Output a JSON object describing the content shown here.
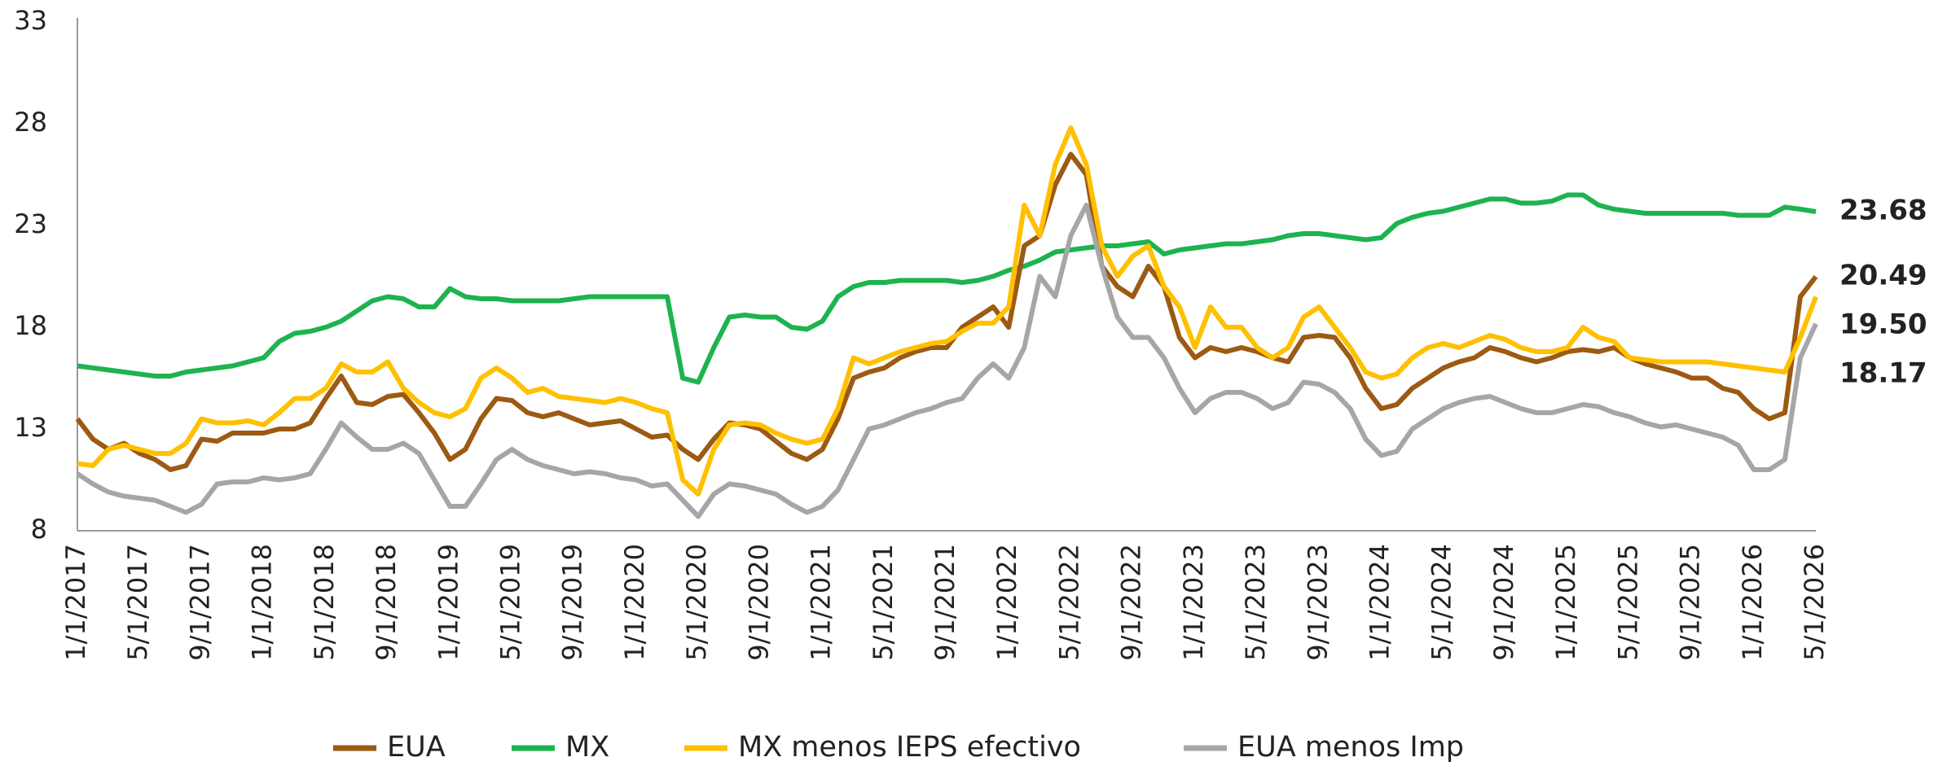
{
  "chart_data": {
    "type": "line",
    "categories": [
      "1/1/2017",
      null,
      null,
      null,
      "5/1/2017",
      null,
      null,
      null,
      "9/1/2017",
      null,
      null,
      null,
      "1/1/2018",
      null,
      null,
      null,
      "5/1/2018",
      null,
      null,
      null,
      "9/1/2018",
      null,
      null,
      null,
      "1/1/2019",
      null,
      null,
      null,
      "5/1/2019",
      null,
      null,
      null,
      "9/1/2019",
      null,
      null,
      null,
      "1/1/2020",
      null,
      null,
      null,
      "5/1/2020",
      null,
      null,
      null,
      "9/1/2020",
      null,
      null,
      null,
      "1/1/2021",
      null,
      null,
      null,
      "5/1/2021",
      null,
      null,
      null,
      "9/1/2021",
      null,
      null,
      null,
      "1/1/2022",
      null,
      null,
      null,
      "5/1/2022",
      null,
      null,
      null,
      "9/1/2022",
      null,
      null,
      null,
      "1/1/2023",
      null,
      null,
      null,
      "5/1/2023",
      null,
      null,
      null,
      "9/1/2023",
      null,
      null,
      null,
      "1/1/2024",
      null,
      null,
      null,
      "5/1/2024",
      null,
      null,
      null,
      "9/1/2024",
      null,
      null,
      null,
      "1/1/2025",
      null,
      null,
      null,
      "5/1/2025",
      null,
      null,
      null,
      "9/1/2025",
      null,
      null,
      null,
      "1/1/2026",
      null,
      null,
      null,
      "5/1/2026"
    ],
    "series": [
      {
        "name": "EUA",
        "color": "#9c5a12",
        "values": [
          13.5,
          12.5,
          12.0,
          12.3,
          11.8,
          11.5,
          11.0,
          11.2,
          12.5,
          12.4,
          12.8,
          12.8,
          12.8,
          13.0,
          13.0,
          13.3,
          14.5,
          15.6,
          14.3,
          14.2,
          14.6,
          14.7,
          13.8,
          12.8,
          11.5,
          12.0,
          13.5,
          14.5,
          14.4,
          13.8,
          13.6,
          13.8,
          13.5,
          13.2,
          13.3,
          13.4,
          13.0,
          12.6,
          12.7,
          12.0,
          11.5,
          12.5,
          13.3,
          13.2,
          13.0,
          12.4,
          11.8,
          11.5,
          12.0,
          13.5,
          15.5,
          15.8,
          16.0,
          16.5,
          16.8,
          17.0,
          17.0,
          18.0,
          18.5,
          19.0,
          18.0,
          22.0,
          22.5,
          25.0,
          26.5,
          25.5,
          21.0,
          20.0,
          19.5,
          21.0,
          20.0,
          17.5,
          16.5,
          17.0,
          16.8,
          17.0,
          16.8,
          16.5,
          16.3,
          17.5,
          17.6,
          17.5,
          16.5,
          15.0,
          14.0,
          14.2,
          15.0,
          15.5,
          16.0,
          16.3,
          16.5,
          17.0,
          16.8,
          16.5,
          16.3,
          16.5,
          16.8,
          16.9,
          16.8,
          17.0,
          16.5,
          16.2,
          16.0,
          15.8,
          15.5,
          15.5,
          15.0,
          14.8,
          14.0,
          13.5,
          13.8,
          19.5,
          20.49
        ],
        "value_labels": [
          null,
          null,
          null,
          null,
          null,
          null,
          null,
          null,
          null,
          null,
          null,
          null,
          null,
          null,
          null,
          null,
          null,
          null,
          null,
          null,
          null,
          null,
          null,
          null,
          null,
          null,
          null,
          null,
          null,
          null,
          null,
          null,
          null,
          null,
          null,
          null,
          null,
          null,
          null,
          null,
          null,
          null,
          null,
          null,
          null,
          null,
          null,
          null,
          null,
          null,
          null,
          null,
          null,
          null,
          null,
          null,
          null,
          null,
          null,
          null,
          null,
          null,
          null,
          null,
          null,
          null,
          null,
          null,
          null,
          null,
          null,
          null,
          null,
          null,
          null,
          null,
          null,
          null,
          null,
          null,
          null,
          null,
          null,
          null,
          null,
          null,
          null,
          null,
          null,
          null,
          null,
          null,
          null,
          null,
          null,
          null,
          null,
          null,
          null,
          null,
          null,
          null,
          null,
          null,
          null,
          null,
          null,
          null,
          null,
          null,
          null,
          null,
          "20.49"
        ]
      },
      {
        "name": "MX",
        "color": "#1db34f",
        "values": [
          16.1,
          16.0,
          15.9,
          15.8,
          15.7,
          15.6,
          15.6,
          15.8,
          15.9,
          16.0,
          16.1,
          16.3,
          16.5,
          17.3,
          17.7,
          17.8,
          18.0,
          18.3,
          18.8,
          19.3,
          19.5,
          19.4,
          19.0,
          19.0,
          19.9,
          19.5,
          19.4,
          19.4,
          19.3,
          19.3,
          19.3,
          19.3,
          19.4,
          19.5,
          19.5,
          19.5,
          19.5,
          19.5,
          19.5,
          15.5,
          15.3,
          17.0,
          18.5,
          18.6,
          18.5,
          18.5,
          18.0,
          17.9,
          18.3,
          19.5,
          20.0,
          20.2,
          20.2,
          20.3,
          20.3,
          20.3,
          20.3,
          20.2,
          20.3,
          20.5,
          20.8,
          21.0,
          21.3,
          21.7,
          21.8,
          21.9,
          22.0,
          22.0,
          22.1,
          22.2,
          21.6,
          21.8,
          21.9,
          22.0,
          22.1,
          22.1,
          22.2,
          22.3,
          22.5,
          22.6,
          22.6,
          22.5,
          22.4,
          22.3,
          22.4,
          23.1,
          23.4,
          23.6,
          23.7,
          23.9,
          24.1,
          24.3,
          24.3,
          24.1,
          24.1,
          24.2,
          24.5,
          24.5,
          24.0,
          23.8,
          23.7,
          23.6,
          23.6,
          23.6,
          23.6,
          23.6,
          23.6,
          23.5,
          23.5,
          23.5,
          23.9,
          23.8,
          23.68
        ],
        "value_labels": [
          null,
          null,
          null,
          null,
          null,
          null,
          null,
          null,
          null,
          null,
          null,
          null,
          null,
          null,
          null,
          null,
          null,
          null,
          null,
          null,
          null,
          null,
          null,
          null,
          null,
          null,
          null,
          null,
          null,
          null,
          null,
          null,
          null,
          null,
          null,
          null,
          null,
          null,
          null,
          null,
          null,
          null,
          null,
          null,
          null,
          null,
          null,
          null,
          null,
          null,
          null,
          null,
          null,
          null,
          null,
          null,
          null,
          null,
          null,
          null,
          null,
          null,
          null,
          null,
          null,
          null,
          null,
          null,
          null,
          null,
          null,
          null,
          null,
          null,
          null,
          null,
          null,
          null,
          null,
          null,
          null,
          null,
          null,
          null,
          null,
          null,
          null,
          null,
          null,
          null,
          null,
          null,
          null,
          null,
          null,
          null,
          null,
          null,
          null,
          null,
          null,
          null,
          null,
          null,
          null,
          null,
          null,
          null,
          null,
          null,
          null,
          null,
          "23.68"
        ]
      },
      {
        "name": "MX menos IEPS efectivo",
        "color": "#ffc000",
        "values": [
          11.3,
          11.2,
          12.0,
          12.2,
          12.0,
          11.8,
          11.8,
          12.3,
          13.5,
          13.3,
          13.3,
          13.4,
          13.2,
          13.8,
          14.5,
          14.5,
          15.0,
          16.2,
          15.8,
          15.8,
          16.3,
          15.0,
          14.3,
          13.8,
          13.6,
          14.0,
          15.5,
          16.0,
          15.5,
          14.8,
          15.0,
          14.6,
          14.5,
          14.4,
          14.3,
          14.5,
          14.3,
          14.0,
          13.8,
          10.5,
          9.8,
          12.0,
          13.2,
          13.3,
          13.2,
          12.8,
          12.5,
          12.3,
          12.5,
          14.0,
          16.5,
          16.2,
          16.5,
          16.8,
          17.0,
          17.2,
          17.3,
          17.8,
          18.2,
          18.2,
          19.0,
          24.0,
          22.5,
          26.0,
          27.8,
          26.0,
          22.0,
          20.5,
          21.5,
          22.0,
          20.0,
          19.0,
          17.0,
          19.0,
          18.0,
          18.0,
          17.0,
          16.5,
          17.0,
          18.5,
          19.0,
          18.0,
          17.0,
          15.8,
          15.5,
          15.7,
          16.5,
          17.0,
          17.2,
          17.0,
          17.3,
          17.6,
          17.4,
          17.0,
          16.8,
          16.8,
          17.0,
          18.0,
          17.5,
          17.3,
          16.5,
          16.4,
          16.3,
          16.3,
          16.3,
          16.3,
          16.2,
          16.1,
          16.0,
          15.9,
          15.8,
          17.5,
          19.5
        ],
        "value_labels": [
          null,
          null,
          null,
          null,
          null,
          null,
          null,
          null,
          null,
          null,
          null,
          null,
          null,
          null,
          null,
          null,
          null,
          null,
          null,
          null,
          null,
          null,
          null,
          null,
          null,
          null,
          null,
          null,
          null,
          null,
          null,
          null,
          null,
          null,
          null,
          null,
          null,
          null,
          null,
          null,
          null,
          null,
          null,
          null,
          null,
          null,
          null,
          null,
          null,
          null,
          null,
          null,
          null,
          null,
          null,
          null,
          null,
          null,
          null,
          null,
          null,
          null,
          null,
          null,
          null,
          null,
          null,
          null,
          null,
          null,
          null,
          null,
          null,
          null,
          null,
          null,
          null,
          null,
          null,
          null,
          null,
          null,
          null,
          null,
          null,
          null,
          null,
          null,
          null,
          null,
          null,
          null,
          null,
          null,
          null,
          null,
          null,
          null,
          null,
          null,
          null,
          null,
          null,
          null,
          null,
          null,
          null,
          null,
          null,
          null,
          null,
          null,
          "19.50"
        ]
      },
      {
        "name": "EUA menos Imp",
        "color": "#a6a6a6",
        "values": [
          10.8,
          10.3,
          9.9,
          9.7,
          9.6,
          9.5,
          9.2,
          8.9,
          9.3,
          10.3,
          10.4,
          10.4,
          10.6,
          10.5,
          10.6,
          10.8,
          12.0,
          13.3,
          12.6,
          12.0,
          12.0,
          12.3,
          11.8,
          10.5,
          9.2,
          9.2,
          10.3,
          11.5,
          12.0,
          11.5,
          11.2,
          11.0,
          10.8,
          10.9,
          10.8,
          10.6,
          10.5,
          10.2,
          10.3,
          9.5,
          8.7,
          9.8,
          10.3,
          10.2,
          10.0,
          9.8,
          9.3,
          8.9,
          9.2,
          10.0,
          11.5,
          13.0,
          13.2,
          13.5,
          13.8,
          14.0,
          14.3,
          14.5,
          15.5,
          16.2,
          15.5,
          17.0,
          20.5,
          19.5,
          22.5,
          24.0,
          21.0,
          18.5,
          17.5,
          17.5,
          16.5,
          15.0,
          13.8,
          14.5,
          14.8,
          14.8,
          14.5,
          14.0,
          14.3,
          15.3,
          15.2,
          14.8,
          14.0,
          12.5,
          11.7,
          11.9,
          13.0,
          13.5,
          14.0,
          14.3,
          14.5,
          14.6,
          14.3,
          14.0,
          13.8,
          13.8,
          14.0,
          14.2,
          14.1,
          13.8,
          13.6,
          13.3,
          13.1,
          13.2,
          13.0,
          12.8,
          12.6,
          12.2,
          11.0,
          11.0,
          11.5,
          16.5,
          18.17
        ],
        "value_labels": [
          null,
          null,
          null,
          null,
          null,
          null,
          null,
          null,
          null,
          null,
          null,
          null,
          null,
          null,
          null,
          null,
          null,
          null,
          null,
          null,
          null,
          null,
          null,
          null,
          null,
          null,
          null,
          null,
          null,
          null,
          null,
          null,
          null,
          null,
          null,
          null,
          null,
          null,
          null,
          null,
          null,
          null,
          null,
          null,
          null,
          null,
          null,
          null,
          null,
          null,
          null,
          null,
          null,
          null,
          null,
          null,
          null,
          null,
          null,
          null,
          null,
          null,
          null,
          null,
          null,
          null,
          null,
          null,
          null,
          null,
          null,
          null,
          null,
          null,
          null,
          null,
          null,
          null,
          null,
          null,
          null,
          null,
          null,
          null,
          null,
          null,
          null,
          null,
          null,
          null,
          null,
          null,
          null,
          null,
          null,
          null,
          null,
          null,
          null,
          null,
          null,
          null,
          null,
          null,
          null,
          null,
          null,
          null,
          null,
          null,
          null,
          null,
          "18.17"
        ]
      }
    ],
    "ylim": [
      8,
      33
    ],
    "yticks": [
      8,
      13,
      18,
      23,
      28,
      33
    ],
    "grid": false,
    "legend": "bottom"
  }
}
